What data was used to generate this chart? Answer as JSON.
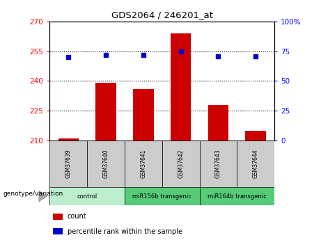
{
  "title": "GDS2064 / 246201_at",
  "samples": [
    "GSM37639",
    "GSM37640",
    "GSM37641",
    "GSM37642",
    "GSM37643",
    "GSM37644"
  ],
  "counts": [
    211,
    239,
    236,
    264,
    228,
    215
  ],
  "percentiles": [
    70,
    72,
    72,
    75,
    71,
    71
  ],
  "bar_color": "#cc0000",
  "dot_color": "#0000cc",
  "ylim_left": [
    210,
    270
  ],
  "ylim_right": [
    0,
    100
  ],
  "yticks_left": [
    210,
    225,
    240,
    255,
    270
  ],
  "yticks_right": [
    0,
    25,
    50,
    75,
    100
  ],
  "group_info": [
    {
      "start": 0,
      "end": 1,
      "label": "control",
      "color": "#bbeecc"
    },
    {
      "start": 2,
      "end": 3,
      "label": "miR156b transgenic",
      "color": "#55cc77"
    },
    {
      "start": 4,
      "end": 5,
      "label": "miR164b transgenic",
      "color": "#55cc77"
    }
  ],
  "genotype_label": "genotype/variation",
  "legend_count": "count",
  "legend_percentile": "percentile rank within the sample",
  "label_row1_bg": "#cccccc",
  "grid_dotted_color": "#000000"
}
